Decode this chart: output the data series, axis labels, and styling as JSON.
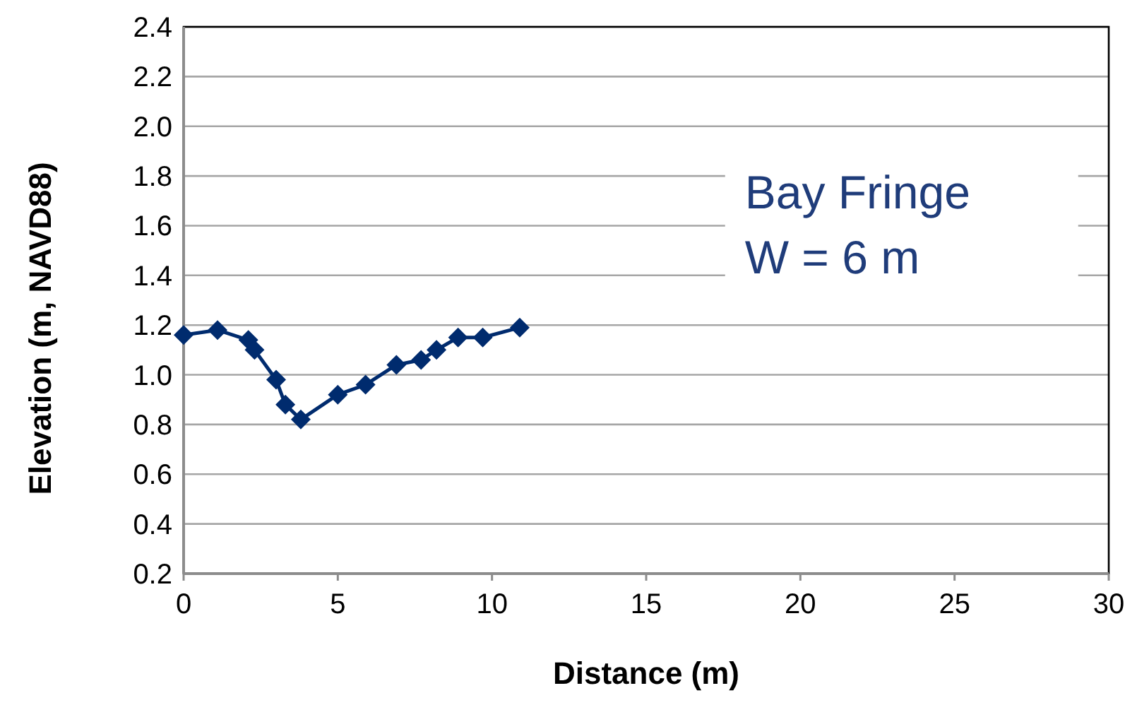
{
  "chart_data": {
    "type": "line",
    "xlabel": "Distance (m)",
    "ylabel": "Elevation (m, NAVD88)",
    "annotations": [
      "Bay Fringe",
      "W = 6 m"
    ],
    "series": [
      {
        "color": "#002b6e",
        "x": [
          0,
          1.1,
          2.1,
          2.3,
          3.0,
          3.3,
          3.8,
          5.0,
          5.9,
          6.9,
          7.7,
          8.2,
          8.9,
          9.7,
          10.9
        ],
        "values": [
          1.16,
          1.18,
          1.14,
          1.1,
          0.98,
          0.88,
          0.82,
          0.92,
          0.96,
          1.04,
          1.06,
          1.1,
          1.15,
          1.15,
          1.19
        ]
      }
    ],
    "xlim": [
      0,
      30
    ],
    "xticks": [
      0,
      5,
      10,
      15,
      20,
      25,
      30
    ],
    "ylim": [
      0.2,
      2.4
    ],
    "yticks": [
      {
        "value": 0.2,
        "label": "0.2"
      },
      {
        "value": 0.4,
        "label": "0.4"
      },
      {
        "value": 0.6,
        "label": "0.6"
      },
      {
        "value": 0.8,
        "label": "0.8"
      },
      {
        "value": 1.0,
        "label": "1.0"
      },
      {
        "value": 1.2,
        "label": "1.2"
      },
      {
        "value": 1.4,
        "label": "1.4"
      },
      {
        "value": 1.6,
        "label": "1.6"
      },
      {
        "value": 1.8,
        "label": "1.8"
      },
      {
        "value": 2.0,
        "label": "2.0"
      },
      {
        "value": 2.2,
        "label": "2.2"
      },
      {
        "value": 2.4,
        "label": "2.4"
      }
    ],
    "grid": "y",
    "marker": "diamond"
  }
}
